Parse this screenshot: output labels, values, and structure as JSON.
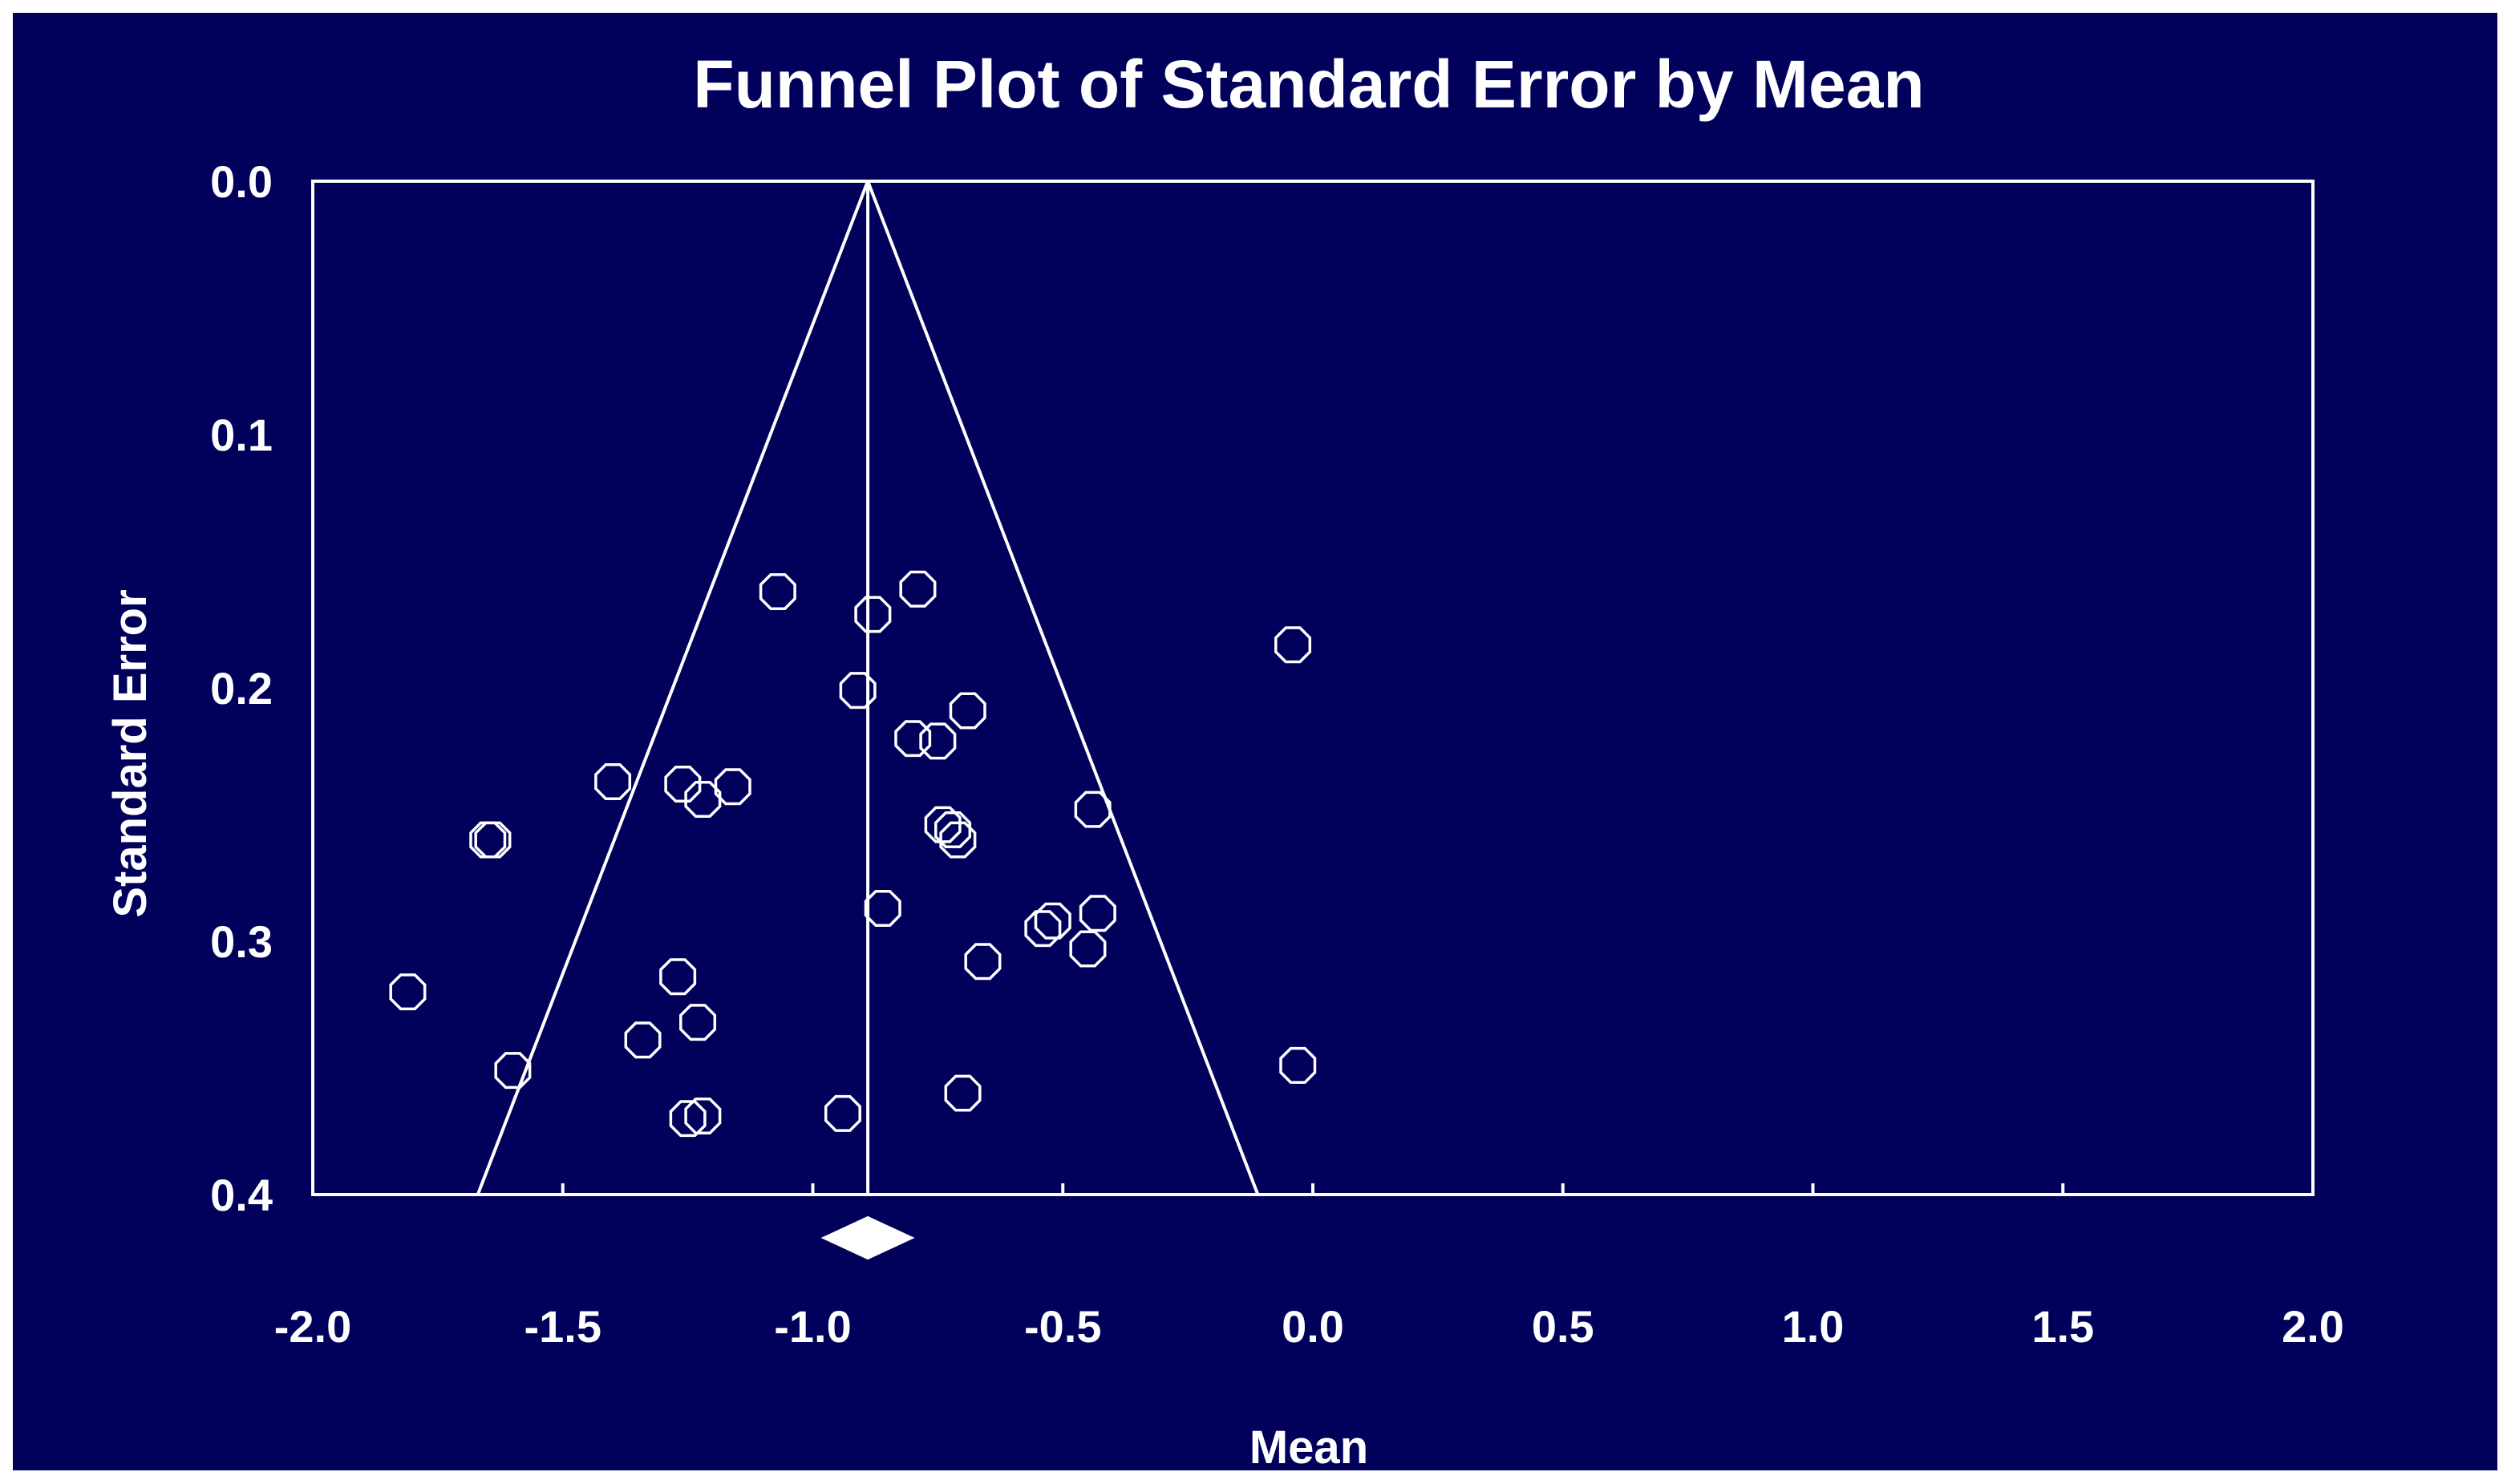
{
  "colors": {
    "background": "#01015c",
    "foreground": "#ffffff",
    "page": "#ffffff"
  },
  "chart_data": {
    "type": "scatter",
    "title": "Funnel Plot of Standard Error by Mean",
    "xlabel": "Mean",
    "ylabel": "Standard Error",
    "xlim": [
      -2.0,
      2.0
    ],
    "ylim": [
      0.0,
      0.4
    ],
    "y_inverted": true,
    "x_ticks": [
      "-2.0",
      "-1.5",
      "-1.0",
      "-0.5",
      "0.0",
      "0.5",
      "1.0",
      "1.5",
      "2.0"
    ],
    "y_ticks": [
      "0.0",
      "0.1",
      "0.2",
      "0.3",
      "0.4"
    ],
    "grid": false,
    "marker": "open-octagon",
    "summary_mean": -0.89,
    "funnel": {
      "apex": [
        -0.89,
        0.0
      ],
      "left_base": [
        -1.67,
        0.4
      ],
      "right_base": [
        -0.11,
        0.4
      ]
    },
    "summary_diamond": {
      "center": -0.89,
      "low": -0.98,
      "high": -0.8
    },
    "points": [
      {
        "x": -1.07,
        "y": 0.162
      },
      {
        "x": -0.79,
        "y": 0.161
      },
      {
        "x": -0.88,
        "y": 0.171
      },
      {
        "x": -0.04,
        "y": 0.183
      },
      {
        "x": -0.91,
        "y": 0.201
      },
      {
        "x": -0.69,
        "y": 0.209
      },
      {
        "x": -0.8,
        "y": 0.22
      },
      {
        "x": -0.75,
        "y": 0.221
      },
      {
        "x": -1.4,
        "y": 0.237
      },
      {
        "x": -1.26,
        "y": 0.238
      },
      {
        "x": -1.16,
        "y": 0.239
      },
      {
        "x": -1.22,
        "y": 0.244
      },
      {
        "x": -0.44,
        "y": 0.248
      },
      {
        "x": -1.65,
        "y": 0.26
      },
      {
        "x": -1.64,
        "y": 0.26
      },
      {
        "x": -0.74,
        "y": 0.254
      },
      {
        "x": -0.72,
        "y": 0.256
      },
      {
        "x": -0.71,
        "y": 0.26
      },
      {
        "x": -0.86,
        "y": 0.287
      },
      {
        "x": -0.52,
        "y": 0.292
      },
      {
        "x": -0.54,
        "y": 0.295
      },
      {
        "x": -0.43,
        "y": 0.289
      },
      {
        "x": -0.45,
        "y": 0.303
      },
      {
        "x": -0.66,
        "y": 0.308
      },
      {
        "x": -1.27,
        "y": 0.314
      },
      {
        "x": -1.81,
        "y": 0.32
      },
      {
        "x": -1.23,
        "y": 0.332
      },
      {
        "x": -1.34,
        "y": 0.339
      },
      {
        "x": -0.03,
        "y": 0.349
      },
      {
        "x": -1.6,
        "y": 0.351
      },
      {
        "x": -0.7,
        "y": 0.36
      },
      {
        "x": -0.94,
        "y": 0.368
      },
      {
        "x": -1.25,
        "y": 0.37
      },
      {
        "x": -1.22,
        "y": 0.369
      }
    ]
  }
}
